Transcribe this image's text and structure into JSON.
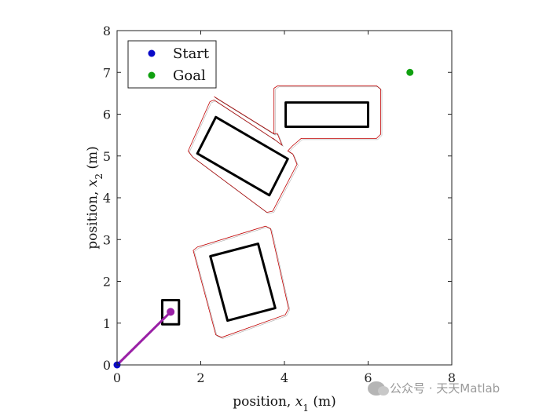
{
  "chart_data": {
    "type": "scatter",
    "xlabel_prefix": "position, ",
    "xlabel_var": "x",
    "xlabel_sub": "1",
    "xlabel_unit": " (m)",
    "ylabel_prefix": "position, ",
    "ylabel_var": "x",
    "ylabel_sub": "2",
    "ylabel_unit": " (m)",
    "xlim": [
      0,
      8
    ],
    "ylim": [
      0,
      8
    ],
    "xticks": [
      0,
      2,
      4,
      6,
      8
    ],
    "yticks": [
      0,
      1,
      2,
      3,
      4,
      5,
      6,
      7,
      8
    ],
    "grid": false,
    "legend_position": "top-left",
    "series": [
      {
        "name": "Start",
        "color": "#0a0ac8",
        "x": [
          0
        ],
        "y": [
          0
        ]
      },
      {
        "name": "Goal",
        "color": "#10a010",
        "x": [
          7
        ],
        "y": [
          7
        ]
      }
    ],
    "trajectory": {
      "color": "#9a20a6",
      "x": [
        0,
        1.28
      ],
      "y": [
        0,
        1.27
      ]
    },
    "obstacles": [
      {
        "color": "#000000",
        "points": [
          [
            1.08,
            1.55
          ],
          [
            1.48,
            1.55
          ],
          [
            1.48,
            0.97
          ],
          [
            1.08,
            0.97
          ]
        ]
      },
      {
        "color": "#000000",
        "points": [
          [
            2.36,
            5.93
          ],
          [
            4.08,
            4.93
          ],
          [
            3.64,
            4.06
          ],
          [
            1.92,
            5.06
          ]
        ]
      },
      {
        "color": "#000000",
        "points": [
          [
            4.03,
            6.28
          ],
          [
            6.0,
            6.28
          ],
          [
            6.0,
            5.7
          ],
          [
            4.03,
            5.7
          ]
        ]
      },
      {
        "color": "#000000",
        "points": [
          [
            2.23,
            2.6
          ],
          [
            3.37,
            2.9
          ],
          [
            3.78,
            1.36
          ],
          [
            2.64,
            1.06
          ]
        ]
      }
    ],
    "inflated_regions": [
      {
        "color": "#c00000",
        "points": [
          [
            2.32,
            6.42
          ],
          [
            3.75,
            5.53
          ],
          [
            3.83,
            5.54
          ],
          [
            3.94,
            5.26
          ],
          [
            3.72,
            5.43
          ],
          [
            3.75,
            5.4
          ],
          [
            2.32,
            6.34
          ],
          [
            2.22,
            6.3
          ],
          [
            1.7,
            5.12
          ],
          [
            1.8,
            4.98
          ],
          [
            3.58,
            3.65
          ],
          [
            3.72,
            3.68
          ],
          [
            4.3,
            4.8
          ],
          [
            4.2,
            5.05
          ],
          [
            4.08,
            5.12
          ],
          [
            4.18,
            5.23
          ],
          [
            4.4,
            5.42
          ],
          [
            6.2,
            5.42
          ],
          [
            6.3,
            5.52
          ],
          [
            6.3,
            6.6
          ],
          [
            6.2,
            6.68
          ],
          [
            3.84,
            6.68
          ],
          [
            3.75,
            6.62
          ],
          [
            3.75,
            5.53
          ]
        ]
      },
      {
        "color": "#c00000",
        "points": [
          [
            1.92,
            2.82
          ],
          [
            3.55,
            3.32
          ],
          [
            3.67,
            3.26
          ],
          [
            4.1,
            1.35
          ],
          [
            4.02,
            1.2
          ],
          [
            2.5,
            0.66
          ],
          [
            2.36,
            0.72
          ],
          [
            1.82,
            2.74
          ]
        ]
      }
    ]
  },
  "watermark": {
    "text": "公众号 · 天天Matlab"
  }
}
